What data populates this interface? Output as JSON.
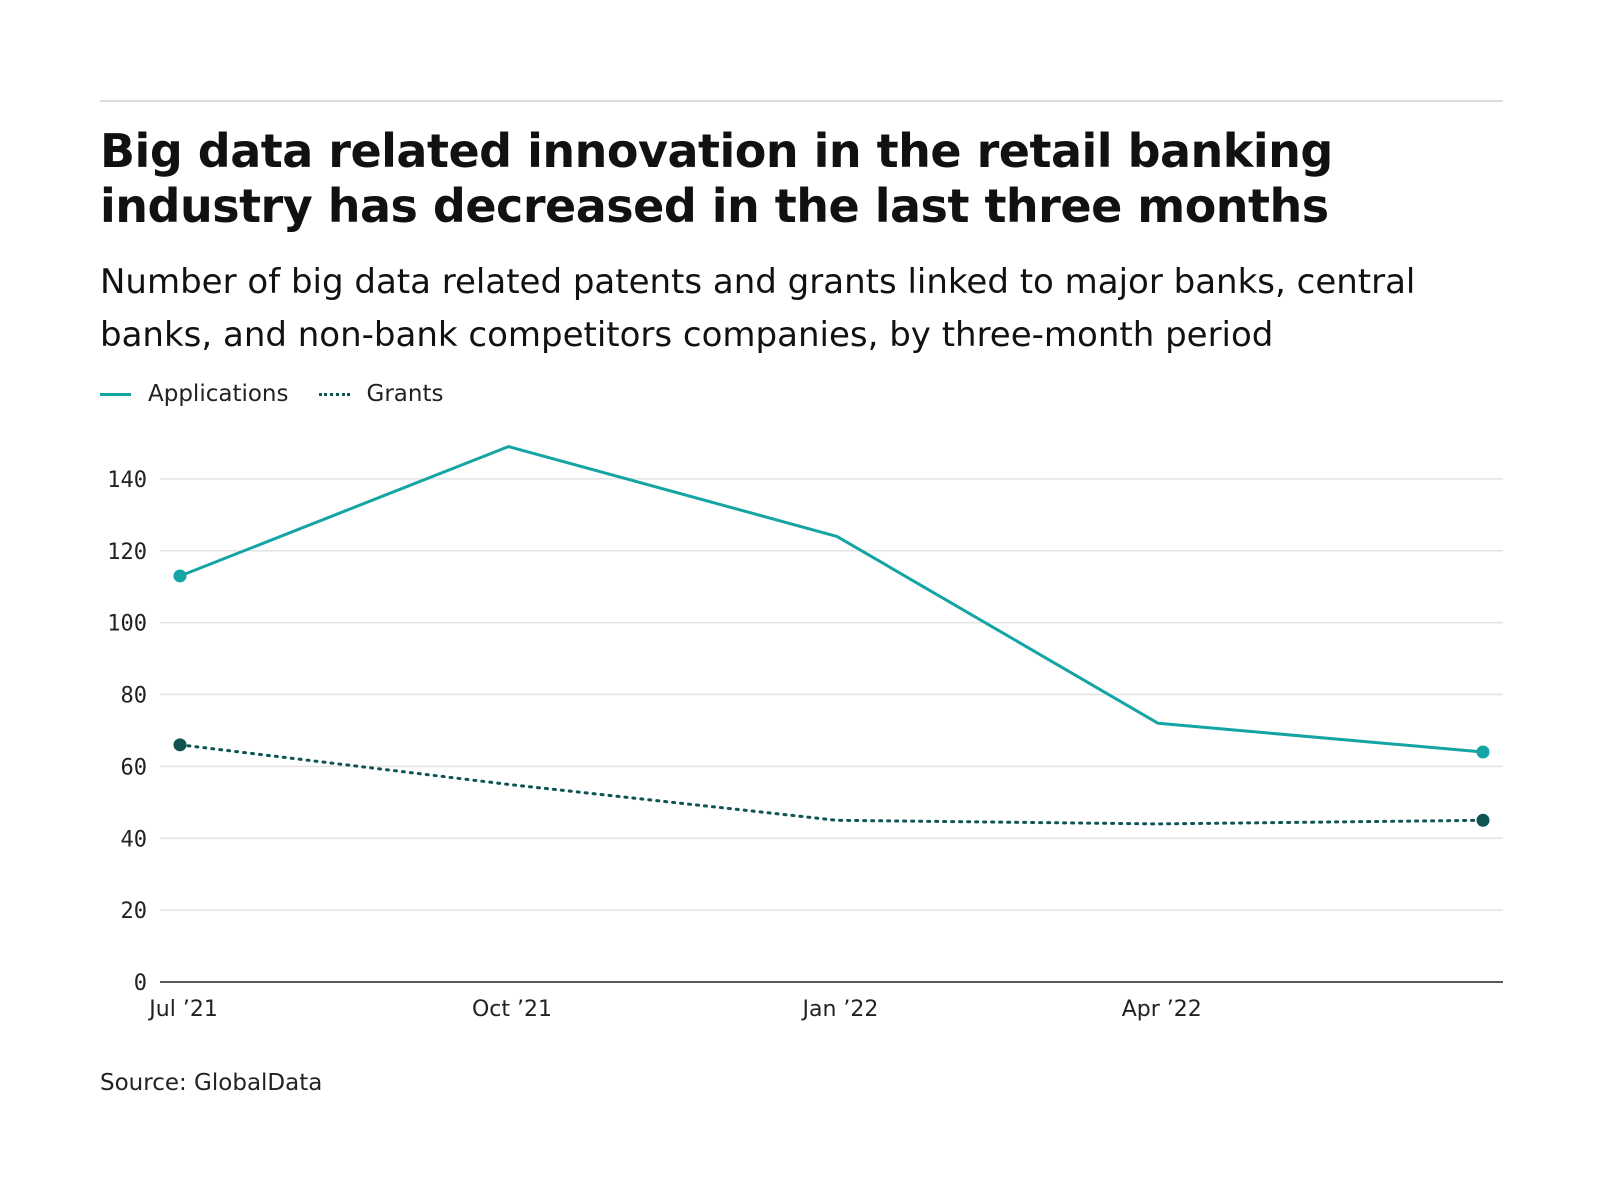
{
  "header": {
    "title": "Big data related innovation in the retail banking industry has decreased in the last three months",
    "subtitle": "Number of big data related patents and grants linked to major banks, central banks, and non-bank competitors companies, by three-month period"
  },
  "footer": {
    "source": "Source: GlobalData"
  },
  "chart_data": {
    "type": "line",
    "title": "Big data related innovation in the retail banking industry has decreased in the last three months",
    "subtitle": "Number of big data related patents and grants linked to major banks, central banks, and non-bank competitors companies, by three-month period",
    "xlabel": "",
    "ylabel": "",
    "x": [
      "2021-06-30",
      "2021-09-30",
      "2021-12-31",
      "2022-03-31",
      "2022-06-30"
    ],
    "x_ticks": [
      {
        "date": "2021-07-01",
        "label": "Jul  21"
      },
      {
        "date": "2021-10-01",
        "label": "Oct  21"
      },
      {
        "date": "2022-01-01",
        "label": "Jan  22"
      },
      {
        "date": "2022-04-01",
        "label": "Apr  22"
      }
    ],
    "ylim": [
      0,
      150
    ],
    "y_ticks": [
      0,
      20,
      40,
      60,
      80,
      100,
      120,
      140
    ],
    "grid": true,
    "legend_position": "top-left",
    "series": [
      {
        "name": "Applications",
        "values": [
          113,
          149,
          124,
          72,
          64
        ],
        "color": "#15a4a4",
        "style": "solid",
        "endpoint_markers": true
      },
      {
        "name": "Grants",
        "values": [
          66,
          55,
          45,
          44,
          45
        ],
        "color": "#0d5453",
        "style": "dotted",
        "endpoint_markers": true
      }
    ]
  }
}
